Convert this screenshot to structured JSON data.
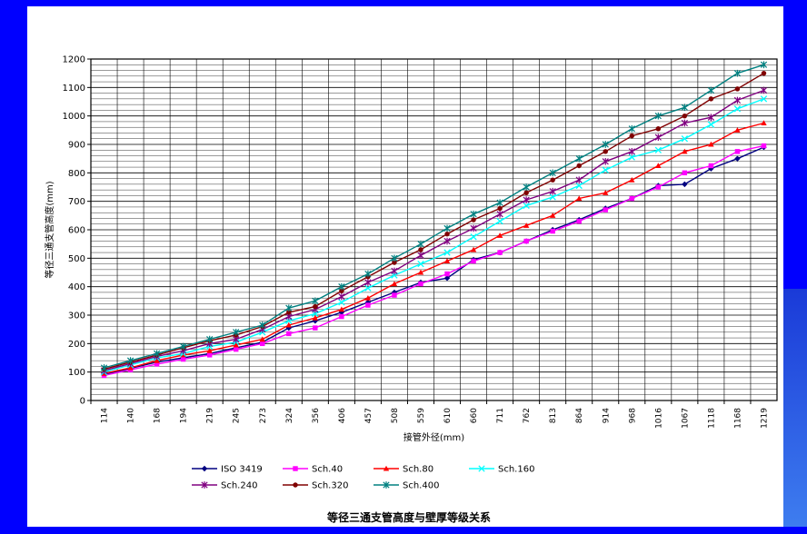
{
  "chart_data": {
    "type": "line",
    "title": "等径三通支管高度与壁厚等级关系",
    "xlabel": "接管外径(mm)",
    "ylabel": "等径三通支管高度(mm)",
    "ylim": [
      0,
      1200
    ],
    "yticks": [
      0,
      100,
      200,
      300,
      400,
      500,
      600,
      700,
      800,
      900,
      1000,
      1100,
      1200
    ],
    "grid": true,
    "legend_position": "bottom",
    "categories": [
      "114",
      "140",
      "168",
      "194",
      "219",
      "245",
      "273",
      "324",
      "356",
      "406",
      "457",
      "508",
      "559",
      "610",
      "660",
      "711",
      "762",
      "813",
      "864",
      "914",
      "968",
      "1016",
      "1067",
      "1118",
      "1168",
      "1219"
    ],
    "series": [
      {
        "name": "ISO 3419",
        "color": "#000080",
        "marker": "diamond",
        "values": [
          90,
          113,
          135,
          150,
          165,
          185,
          205,
          255,
          280,
          310,
          345,
          380,
          415,
          430,
          495,
          520,
          560,
          600,
          635,
          675,
          710,
          755,
          760,
          815,
          850,
          890
        ]
      },
      {
        "name": "Sch.40",
        "color": "#ff00ff",
        "marker": "square",
        "values": [
          88,
          108,
          128,
          145,
          160,
          180,
          200,
          235,
          255,
          295,
          335,
          370,
          410,
          445,
          490,
          520,
          560,
          595,
          630,
          670,
          710,
          750,
          800,
          825,
          875,
          895
        ]
      },
      {
        "name": "Sch.80",
        "color": "#ff0000",
        "marker": "triangle",
        "values": [
          95,
          115,
          140,
          160,
          175,
          195,
          215,
          265,
          290,
          320,
          360,
          410,
          450,
          490,
          530,
          580,
          615,
          650,
          710,
          730,
          775,
          825,
          875,
          900,
          950,
          975
        ]
      },
      {
        "name": "Sch.160",
        "color": "#00ffff",
        "marker": "x",
        "values": [
          100,
          125,
          150,
          165,
          190,
          205,
          240,
          280,
          305,
          345,
          395,
          440,
          480,
          520,
          575,
          630,
          685,
          715,
          755,
          810,
          855,
          880,
          920,
          970,
          1025,
          1060
        ]
      },
      {
        "name": "Sch.240",
        "color": "#800080",
        "marker": "star",
        "values": [
          105,
          130,
          155,
          175,
          200,
          215,
          250,
          295,
          320,
          365,
          415,
          455,
          510,
          560,
          605,
          655,
          705,
          735,
          775,
          840,
          875,
          925,
          975,
          995,
          1055,
          1090
        ]
      },
      {
        "name": "Sch.320",
        "color": "#800000",
        "marker": "circle",
        "values": [
          110,
          135,
          160,
          185,
          210,
          230,
          260,
          310,
          330,
          385,
          435,
          485,
          530,
          585,
          635,
          675,
          730,
          775,
          825,
          875,
          930,
          955,
          1000,
          1060,
          1095,
          1150
        ]
      },
      {
        "name": "Sch.400",
        "color": "#008080",
        "marker": "star",
        "values": [
          115,
          140,
          165,
          190,
          215,
          240,
          265,
          325,
          350,
          400,
          445,
          500,
          550,
          605,
          655,
          695,
          750,
          800,
          850,
          900,
          955,
          1000,
          1030,
          1090,
          1150,
          1180
        ]
      }
    ]
  }
}
